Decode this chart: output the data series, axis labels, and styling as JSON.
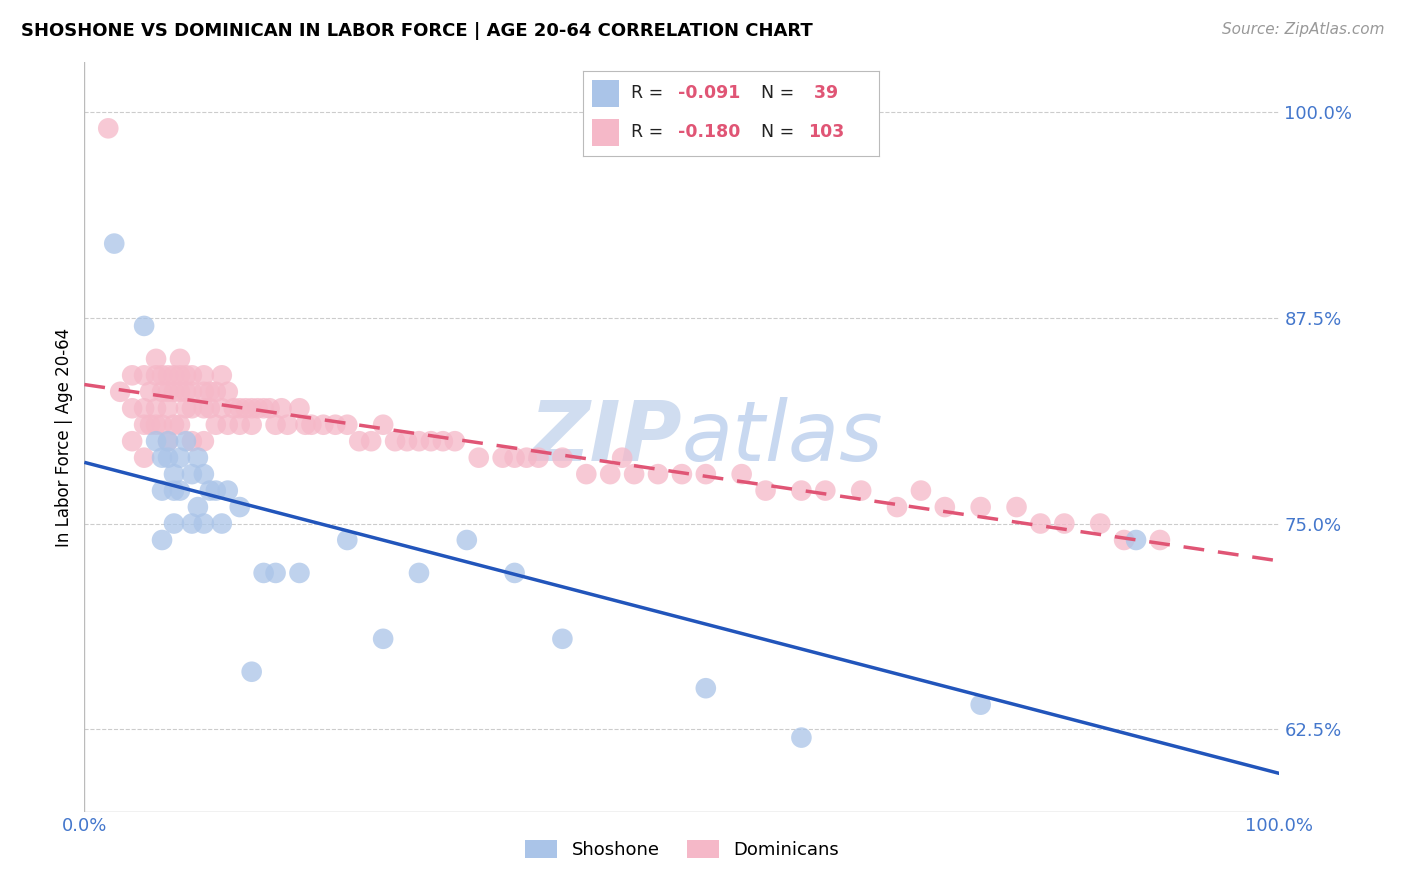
{
  "title": "SHOSHONE VS DOMINICAN IN LABOR FORCE | AGE 20-64 CORRELATION CHART",
  "source": "Source: ZipAtlas.com",
  "ylabel": "In Labor Force | Age 20-64",
  "xlim": [
    0.0,
    1.0
  ],
  "ylim": [
    0.575,
    1.03
  ],
  "ytick_vals": [
    0.625,
    0.75,
    0.875,
    1.0
  ],
  "ytick_labels": [
    "62.5%",
    "75.0%",
    "87.5%",
    "100.0%"
  ],
  "shoshone_color": "#aac4e8",
  "dominican_color": "#f5b8c8",
  "shoshone_line_color": "#2255bb",
  "dominican_line_color": "#e05575",
  "background_color": "#ffffff",
  "grid_color": "#cccccc",
  "title_fontsize": 13,
  "tick_color": "#4477cc",
  "watermark_color": "#d0ddf0",
  "shoshone_x": [
    0.025,
    0.05,
    0.06,
    0.065,
    0.065,
    0.065,
    0.07,
    0.07,
    0.075,
    0.075,
    0.075,
    0.08,
    0.08,
    0.085,
    0.09,
    0.09,
    0.095,
    0.095,
    0.1,
    0.1,
    0.105,
    0.11,
    0.115,
    0.12,
    0.13,
    0.14,
    0.15,
    0.16,
    0.18,
    0.22,
    0.25,
    0.28,
    0.32,
    0.36,
    0.4,
    0.52,
    0.6,
    0.75,
    0.88
  ],
  "shoshone_y": [
    0.92,
    0.87,
    0.8,
    0.79,
    0.77,
    0.74,
    0.8,
    0.79,
    0.78,
    0.77,
    0.75,
    0.79,
    0.77,
    0.8,
    0.78,
    0.75,
    0.79,
    0.76,
    0.78,
    0.75,
    0.77,
    0.77,
    0.75,
    0.77,
    0.76,
    0.66,
    0.72,
    0.72,
    0.72,
    0.74,
    0.68,
    0.72,
    0.74,
    0.72,
    0.68,
    0.65,
    0.62,
    0.64,
    0.74
  ],
  "dominican_x": [
    0.02,
    0.03,
    0.04,
    0.04,
    0.04,
    0.05,
    0.05,
    0.05,
    0.05,
    0.055,
    0.055,
    0.06,
    0.06,
    0.06,
    0.06,
    0.065,
    0.065,
    0.065,
    0.07,
    0.07,
    0.07,
    0.07,
    0.075,
    0.075,
    0.075,
    0.08,
    0.08,
    0.08,
    0.08,
    0.085,
    0.085,
    0.085,
    0.09,
    0.09,
    0.09,
    0.09,
    0.1,
    0.1,
    0.1,
    0.1,
    0.105,
    0.105,
    0.11,
    0.11,
    0.115,
    0.115,
    0.12,
    0.12,
    0.125,
    0.13,
    0.13,
    0.135,
    0.14,
    0.14,
    0.145,
    0.15,
    0.155,
    0.16,
    0.165,
    0.17,
    0.18,
    0.185,
    0.19,
    0.2,
    0.21,
    0.22,
    0.23,
    0.24,
    0.25,
    0.26,
    0.27,
    0.28,
    0.29,
    0.3,
    0.31,
    0.33,
    0.35,
    0.36,
    0.37,
    0.38,
    0.4,
    0.42,
    0.44,
    0.45,
    0.46,
    0.48,
    0.5,
    0.52,
    0.55,
    0.57,
    0.6,
    0.62,
    0.65,
    0.68,
    0.7,
    0.72,
    0.75,
    0.78,
    0.8,
    0.82,
    0.85,
    0.87,
    0.9
  ],
  "dominican_y": [
    0.99,
    0.83,
    0.84,
    0.82,
    0.8,
    0.84,
    0.82,
    0.81,
    0.79,
    0.83,
    0.81,
    0.85,
    0.84,
    0.82,
    0.81,
    0.84,
    0.83,
    0.81,
    0.84,
    0.83,
    0.82,
    0.8,
    0.84,
    0.83,
    0.81,
    0.85,
    0.84,
    0.83,
    0.81,
    0.84,
    0.83,
    0.82,
    0.84,
    0.83,
    0.82,
    0.8,
    0.84,
    0.83,
    0.82,
    0.8,
    0.83,
    0.82,
    0.83,
    0.81,
    0.84,
    0.82,
    0.83,
    0.81,
    0.82,
    0.82,
    0.81,
    0.82,
    0.82,
    0.81,
    0.82,
    0.82,
    0.82,
    0.81,
    0.82,
    0.81,
    0.82,
    0.81,
    0.81,
    0.81,
    0.81,
    0.81,
    0.8,
    0.8,
    0.81,
    0.8,
    0.8,
    0.8,
    0.8,
    0.8,
    0.8,
    0.79,
    0.79,
    0.79,
    0.79,
    0.79,
    0.79,
    0.78,
    0.78,
    0.79,
    0.78,
    0.78,
    0.78,
    0.78,
    0.78,
    0.77,
    0.77,
    0.77,
    0.77,
    0.76,
    0.77,
    0.76,
    0.76,
    0.76,
    0.75,
    0.75,
    0.75,
    0.74,
    0.74
  ]
}
